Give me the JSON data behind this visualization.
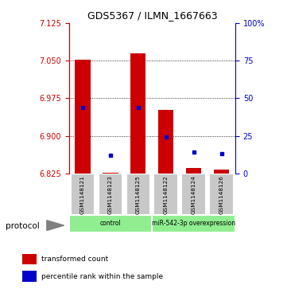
{
  "title": "GDS5367 / ILMN_1667663",
  "samples": [
    "GSM1148121",
    "GSM1148123",
    "GSM1148125",
    "GSM1148122",
    "GSM1148124",
    "GSM1148126"
  ],
  "transformed_counts": [
    7.052,
    6.826,
    7.065,
    6.952,
    6.836,
    6.832
  ],
  "percentile_ranks": [
    44,
    12,
    44,
    24,
    14,
    13
  ],
  "ymin": 6.825,
  "ymax": 7.125,
  "yticks": [
    6.825,
    6.9,
    6.975,
    7.05,
    7.125
  ],
  "right_yticks": [
    0,
    25,
    50,
    75,
    100
  ],
  "right_ylabels": [
    "0",
    "25",
    "50",
    "75",
    "100%"
  ],
  "groups": [
    {
      "label": "control",
      "start": 0,
      "end": 3,
      "color": "#90EE90"
    },
    {
      "label": "miR-542-3p overexpression",
      "start": 3,
      "end": 6,
      "color": "#90EE90"
    }
  ],
  "bar_color": "#CC0000",
  "blue_color": "#0000CC",
  "bar_width": 0.55,
  "left_axis_color": "#CC0000",
  "right_axis_color": "#0000CC",
  "title_fontsize": 9,
  "tick_fontsize": 7,
  "sample_box_color": "#C8C8C8",
  "protocol_label": "protocol"
}
